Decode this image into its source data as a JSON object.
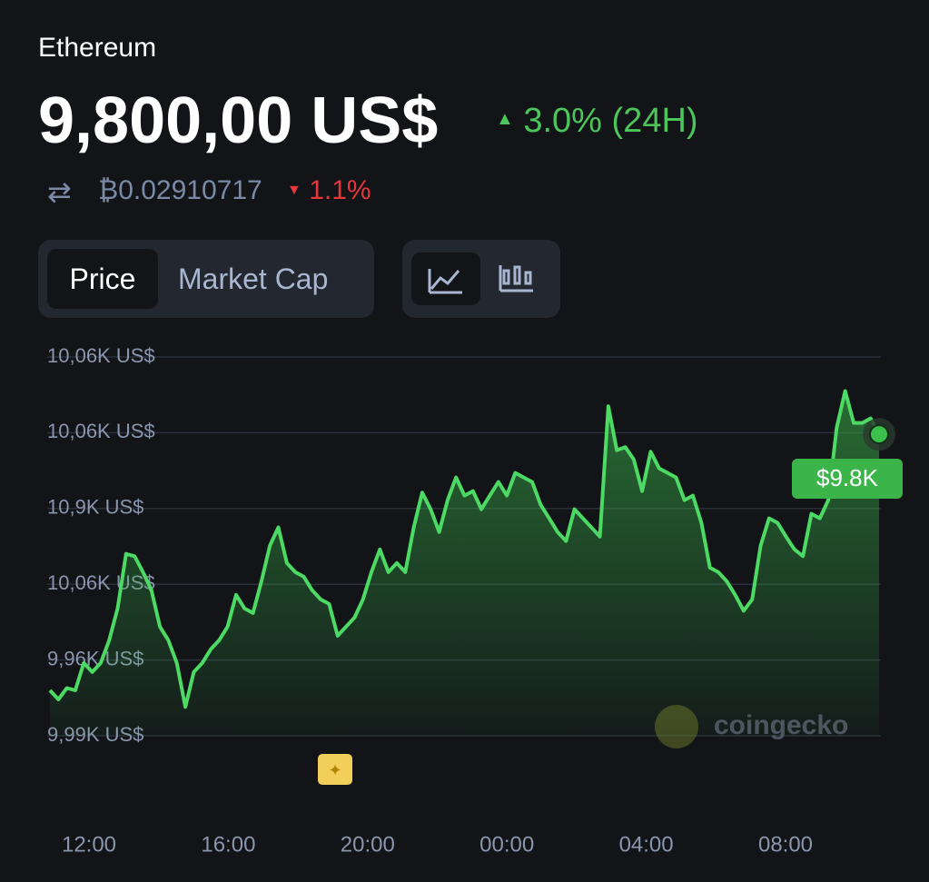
{
  "header": {
    "title": "Ethereum",
    "price": "9,800,00 US$",
    "change": "3.0% (24H)",
    "btc_price": "₿0.02910717",
    "btc_change": "1.1%"
  },
  "tabs": [
    "Price",
    "Market Cap"
  ],
  "chart_data": {
    "type": "line",
    "color": "#4cd964",
    "ylim": [
      0,
      5
    ],
    "gridline_labels": [
      "10,06K US$",
      "10,06K US$",
      "10,9K US$",
      "10,06K US$",
      "9,96K US$",
      "9,99K US$"
    ],
    "x_labels": [
      "12:00",
      "16:00",
      "20:00",
      "00:00",
      "04:00",
      "08:00"
    ],
    "current_label": "$9.8K",
    "watermark": "coingecko",
    "values": [
      0.6,
      0.48,
      0.63,
      0.6,
      0.96,
      0.84,
      0.96,
      1.26,
      1.68,
      2.4,
      2.37,
      2.16,
      1.92,
      1.44,
      1.26,
      0.96,
      0.38,
      0.84,
      0.96,
      1.14,
      1.26,
      1.44,
      1.86,
      1.68,
      1.62,
      2.04,
      2.51,
      2.75,
      2.28,
      2.16,
      2.1,
      1.92,
      1.8,
      1.74,
      1.32,
      1.44,
      1.56,
      1.8,
      2.16,
      2.46,
      2.16,
      2.28,
      2.16,
      2.75,
      3.21,
      2.99,
      2.69,
      3.11,
      3.41,
      3.17,
      3.23,
      2.99,
      3.17,
      3.35,
      3.17,
      3.47,
      3.41,
      3.35,
      3.05,
      2.87,
      2.69,
      2.57,
      2.99,
      2.87,
      2.75,
      2.63,
      4.35,
      3.77,
      3.81,
      3.65,
      3.23,
      3.75,
      3.53,
      3.47,
      3.41,
      3.11,
      3.17,
      2.81,
      2.22,
      2.16,
      2.04,
      1.86,
      1.65,
      1.8,
      2.51,
      2.87,
      2.81,
      2.63,
      2.46,
      2.37,
      2.93,
      2.87,
      3.11,
      4.07,
      4.55,
      4.13,
      4.13,
      4.19,
      3.98
    ]
  }
}
